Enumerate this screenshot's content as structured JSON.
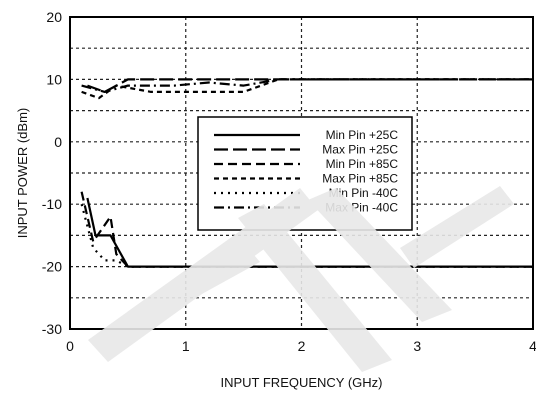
{
  "chart_data": {
    "type": "line",
    "title": "",
    "xlabel": "INPUT FREQUENCY (GHz)",
    "ylabel": "INPUT POWER (dBm)",
    "xlim": [
      0,
      4
    ],
    "ylim": [
      -30,
      20
    ],
    "x_ticks": [
      "0",
      "1",
      "2",
      "3",
      "4"
    ],
    "y_ticks": [
      "20",
      "10",
      "0",
      "-10",
      "-20",
      "-30"
    ],
    "grid": "dotted",
    "legend_position": "center-right",
    "watermark_color": "#e8e8e8",
    "series": [
      {
        "name": "Min Pin +25C",
        "style": "solid",
        "x": [
          0.15,
          0.22,
          0.35,
          0.5,
          4.0
        ],
        "y": [
          -9,
          -15,
          -15,
          -20,
          -20
        ]
      },
      {
        "name": "Max Pin +25C",
        "style": "dash-long",
        "x": [
          0.15,
          0.3,
          0.5,
          1.5,
          1.8,
          4.0
        ],
        "y": [
          9,
          8,
          10,
          10,
          10,
          10
        ]
      },
      {
        "name": "Min Pin +85C",
        "style": "dash-medium",
        "x": [
          0.1,
          0.15,
          0.2,
          0.35,
          0.4,
          0.5,
          4.0
        ],
        "y": [
          -8,
          -12,
          -16,
          -12,
          -18,
          -20,
          -20
        ]
      },
      {
        "name": "Max Pin +85C",
        "style": "dash-short",
        "x": [
          0.1,
          0.25,
          0.4,
          0.7,
          1.0,
          1.5,
          1.8,
          4.0
        ],
        "y": [
          8,
          7,
          9,
          8,
          8,
          8,
          10,
          10
        ]
      },
      {
        "name": "Min Pin -40C",
        "style": "dotted",
        "x": [
          0.1,
          0.2,
          0.3,
          0.4,
          0.5,
          4.0
        ],
        "y": [
          -10,
          -17,
          -19,
          -19,
          -20,
          -20
        ]
      },
      {
        "name": "Max Pin -40C",
        "style": "dash-dot",
        "x": [
          0.1,
          0.3,
          0.5,
          0.9,
          1.2,
          1.5,
          1.8,
          4.0
        ],
        "y": [
          9,
          8,
          9,
          9,
          9.5,
          9,
          10,
          10
        ]
      }
    ]
  }
}
